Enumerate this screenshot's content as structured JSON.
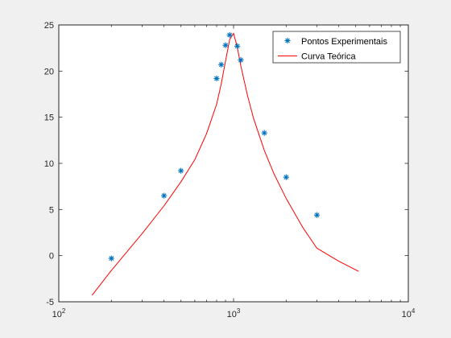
{
  "chart_data": {
    "type": "line",
    "xscale": "log",
    "xlim": [
      100,
      10000
    ],
    "ylim": [
      -5,
      25
    ],
    "x_ticks": [
      {
        "value": 100,
        "base": "10",
        "exp": "2"
      },
      {
        "value": 1000,
        "base": "10",
        "exp": "3"
      },
      {
        "value": 10000,
        "base": "10",
        "exp": "4"
      }
    ],
    "y_ticks": [
      {
        "value": -5,
        "label": "-5"
      },
      {
        "value": 0,
        "label": "0"
      },
      {
        "value": 5,
        "label": "5"
      },
      {
        "value": 10,
        "label": "10"
      },
      {
        "value": 15,
        "label": "15"
      },
      {
        "value": 20,
        "label": "20"
      },
      {
        "value": 25,
        "label": "25"
      }
    ],
    "grid": false,
    "legend_position": "top-right",
    "series": [
      {
        "name": "Pontos Experimentais",
        "kind": "scatter",
        "marker": "asterisk",
        "color": "#0072bd",
        "x": [
          200,
          400,
          500,
          800,
          850,
          900,
          950,
          1050,
          1100,
          1500,
          2000,
          3000
        ],
        "y": [
          -0.3,
          6.5,
          9.2,
          19.2,
          20.7,
          22.8,
          23.9,
          22.7,
          21.2,
          13.3,
          8.5,
          4.4
        ]
      },
      {
        "name": "Curva Teórica",
        "kind": "line",
        "color": "#ff0000",
        "x": [
          155,
          200,
          300,
          400,
          500,
          600,
          700,
          800,
          850,
          900,
          950,
          1000,
          1050,
          1100,
          1200,
          1300,
          1500,
          1700,
          2000,
          2500,
          3000,
          4000,
          5200
        ],
        "y": [
          -4.3,
          -1.6,
          2.4,
          5.4,
          8.0,
          10.4,
          13.2,
          16.4,
          18.6,
          21.1,
          23.4,
          24.1,
          22.6,
          20.6,
          17.4,
          14.9,
          11.4,
          8.9,
          6.2,
          3.0,
          0.8,
          -0.6,
          -1.7
        ]
      }
    ]
  }
}
